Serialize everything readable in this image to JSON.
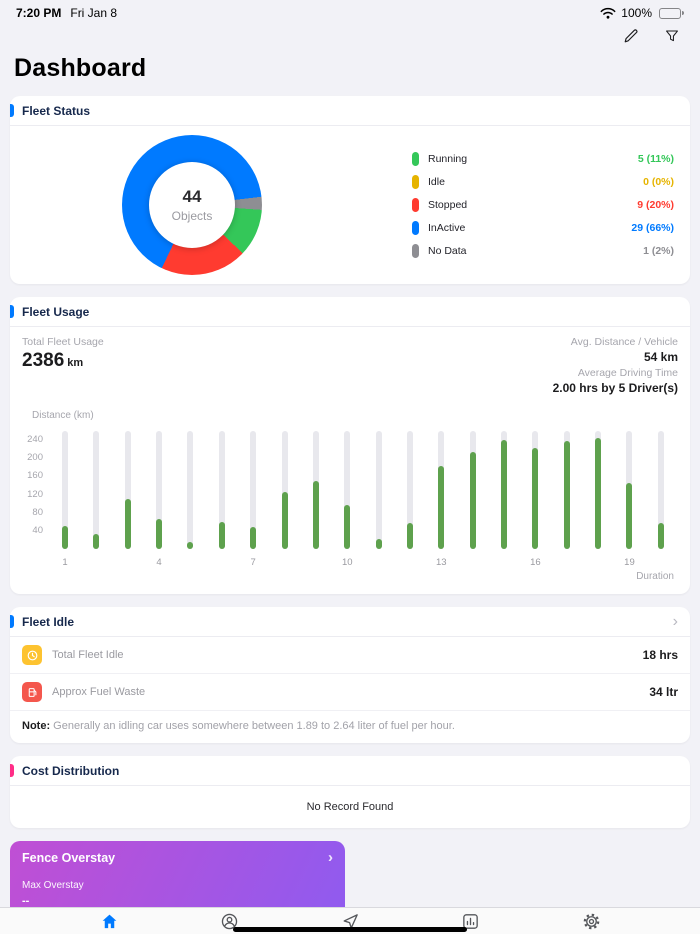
{
  "colors": {
    "accent_blue": "#007aff",
    "accent_pink": "#ff2d87",
    "bar_green": "#5ea14d",
    "bar_track": "#e8e8ed",
    "idle_icon": "#fdc330",
    "fuel_icon": "#f4574d",
    "fence_from": "#c04fd4",
    "fence_to": "#8e5bf0"
  },
  "icons": {
    "chevron_right": "›"
  },
  "status_bar": {
    "time": "7:20 PM",
    "date": "Fri Jan 8",
    "battery_percent": "100%"
  },
  "page": {
    "title": "Dashboard"
  },
  "fleet_status": {
    "title": "Fleet Status",
    "center_value": "44",
    "center_label": "Objects",
    "legend": [
      {
        "label": "Running",
        "value": "5 (11%)",
        "color": "#34c759"
      },
      {
        "label": "Idle",
        "value": "0 (0%)",
        "color": "#e6b400"
      },
      {
        "label": "Stopped",
        "value": "9 (20%)",
        "color": "#ff3b30"
      },
      {
        "label": "InActive",
        "value": "29 (66%)",
        "color": "#007aff"
      },
      {
        "label": "No Data",
        "value": "1 (2%)",
        "color": "#8e8e93"
      }
    ]
  },
  "fleet_usage": {
    "title": "Fleet Usage",
    "total_label": "Total Fleet Usage",
    "total_value": "2386",
    "total_unit": "km",
    "avg_distance_label": "Avg. Distance / Vehicle",
    "avg_distance_value": "54 km",
    "avg_time_label": "Average Driving Time",
    "avg_time_value": "2.00 hrs by 5 Driver(s)",
    "y_axis_label": "Distance (km)",
    "x_axis_label": "Duration"
  },
  "fleet_idle": {
    "title": "Fleet Idle",
    "rows": [
      {
        "icon": "idle-timer-icon",
        "label": "Total Fleet Idle",
        "value": "18 hrs"
      },
      {
        "icon": "fuel-pump-icon",
        "label": "Approx Fuel Waste",
        "value": "34 ltr"
      }
    ],
    "note_label": "Note:",
    "note_text": " Generally an idling car uses somewhere between 1.89 to 2.64 liter of fuel per hour."
  },
  "cost_distribution": {
    "title": "Cost Distribution",
    "empty_text": "No Record Found"
  },
  "fence_overstay": {
    "title": "Fence Overstay",
    "max_label": "Max Overstay",
    "max_value": "--"
  },
  "tab_bar": {
    "tabs": [
      {
        "name": "home",
        "active": true
      },
      {
        "name": "tracking",
        "active": false
      },
      {
        "name": "navigation",
        "active": false
      },
      {
        "name": "reports",
        "active": false
      },
      {
        "name": "settings",
        "active": false
      }
    ]
  },
  "chart_data": [
    {
      "type": "pie",
      "title": "Fleet Status",
      "center_value": 44,
      "center_label": "Objects",
      "start_angle_deg": 94,
      "draw_order": [
        "Running",
        "Stopped",
        "InActive",
        "No Data",
        "Idle"
      ],
      "segments": [
        {
          "label": "Running",
          "count": 5,
          "pct": 11,
          "color": "#34c759"
        },
        {
          "label": "Idle",
          "count": 0,
          "pct": 0,
          "color": "#ffcc00"
        },
        {
          "label": "Stopped",
          "count": 9,
          "pct": 20,
          "color": "#ff3b30"
        },
        {
          "label": "InActive",
          "count": 29,
          "pct": 66,
          "color": "#007aff"
        },
        {
          "label": "No Data",
          "count": 1,
          "pct": 2,
          "color": "#8e8e93"
        }
      ]
    },
    {
      "type": "bar",
      "title": "Fleet Usage",
      "xlabel": "Duration",
      "ylabel": "Distance (km)",
      "ylim": [
        0,
        260
      ],
      "yticks": [
        40,
        80,
        120,
        160,
        200,
        240
      ],
      "x": [
        1,
        2,
        3,
        4,
        5,
        6,
        7,
        8,
        9,
        10,
        11,
        12,
        13,
        14,
        15,
        16,
        17,
        18,
        19,
        20
      ],
      "x_tick_labels": [
        "1",
        "4",
        "7",
        "10",
        "13",
        "16",
        "19"
      ],
      "values": [
        50,
        32,
        110,
        66,
        16,
        60,
        48,
        126,
        150,
        96,
        22,
        58,
        182,
        214,
        240,
        222,
        238,
        244,
        146,
        58
      ]
    }
  ]
}
